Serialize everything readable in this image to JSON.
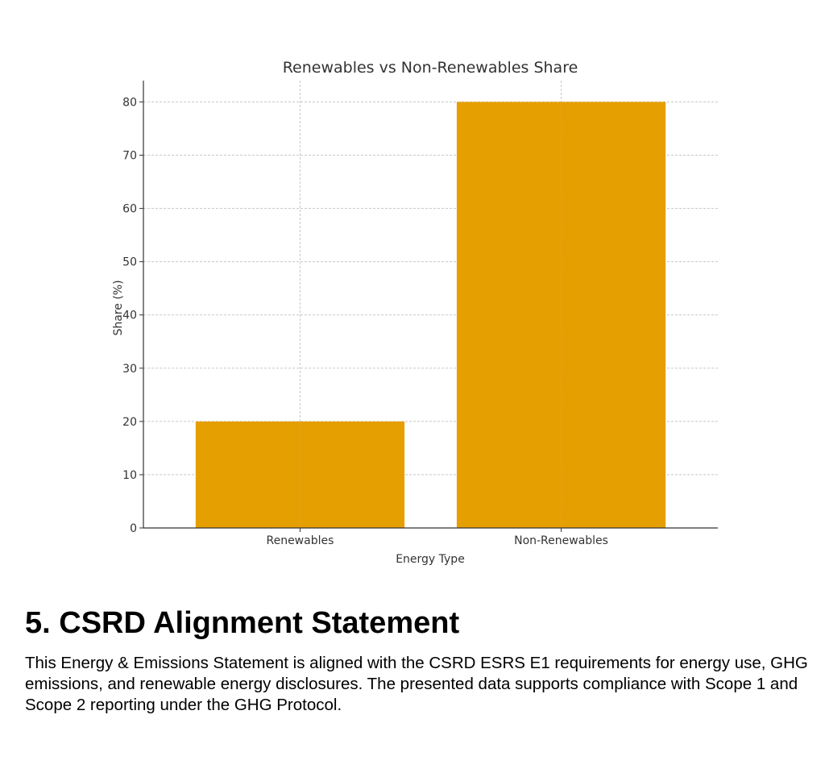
{
  "chart_data": {
    "type": "bar",
    "title": "Renewables vs Non-Renewables Share",
    "xlabel": "Energy Type",
    "ylabel": "Share (%)",
    "categories": [
      "Renewables",
      "Non-Renewables"
    ],
    "values": [
      20,
      80
    ],
    "ylim": [
      0,
      84
    ],
    "yticks": [
      0,
      10,
      20,
      30,
      40,
      50,
      60,
      70,
      80
    ],
    "grid": true,
    "bar_color": "#E69F00",
    "grid_color": "#c8c8c8"
  },
  "section": {
    "heading": "5. CSRD Alignment Statement",
    "body": "This Energy & Emissions Statement is aligned with the CSRD ESRS E1 requirements for energy use, GHG emissions, and renewable energy disclosures. The presented data supports compliance with Scope 1 and Scope 2 reporting under the GHG Protocol."
  }
}
